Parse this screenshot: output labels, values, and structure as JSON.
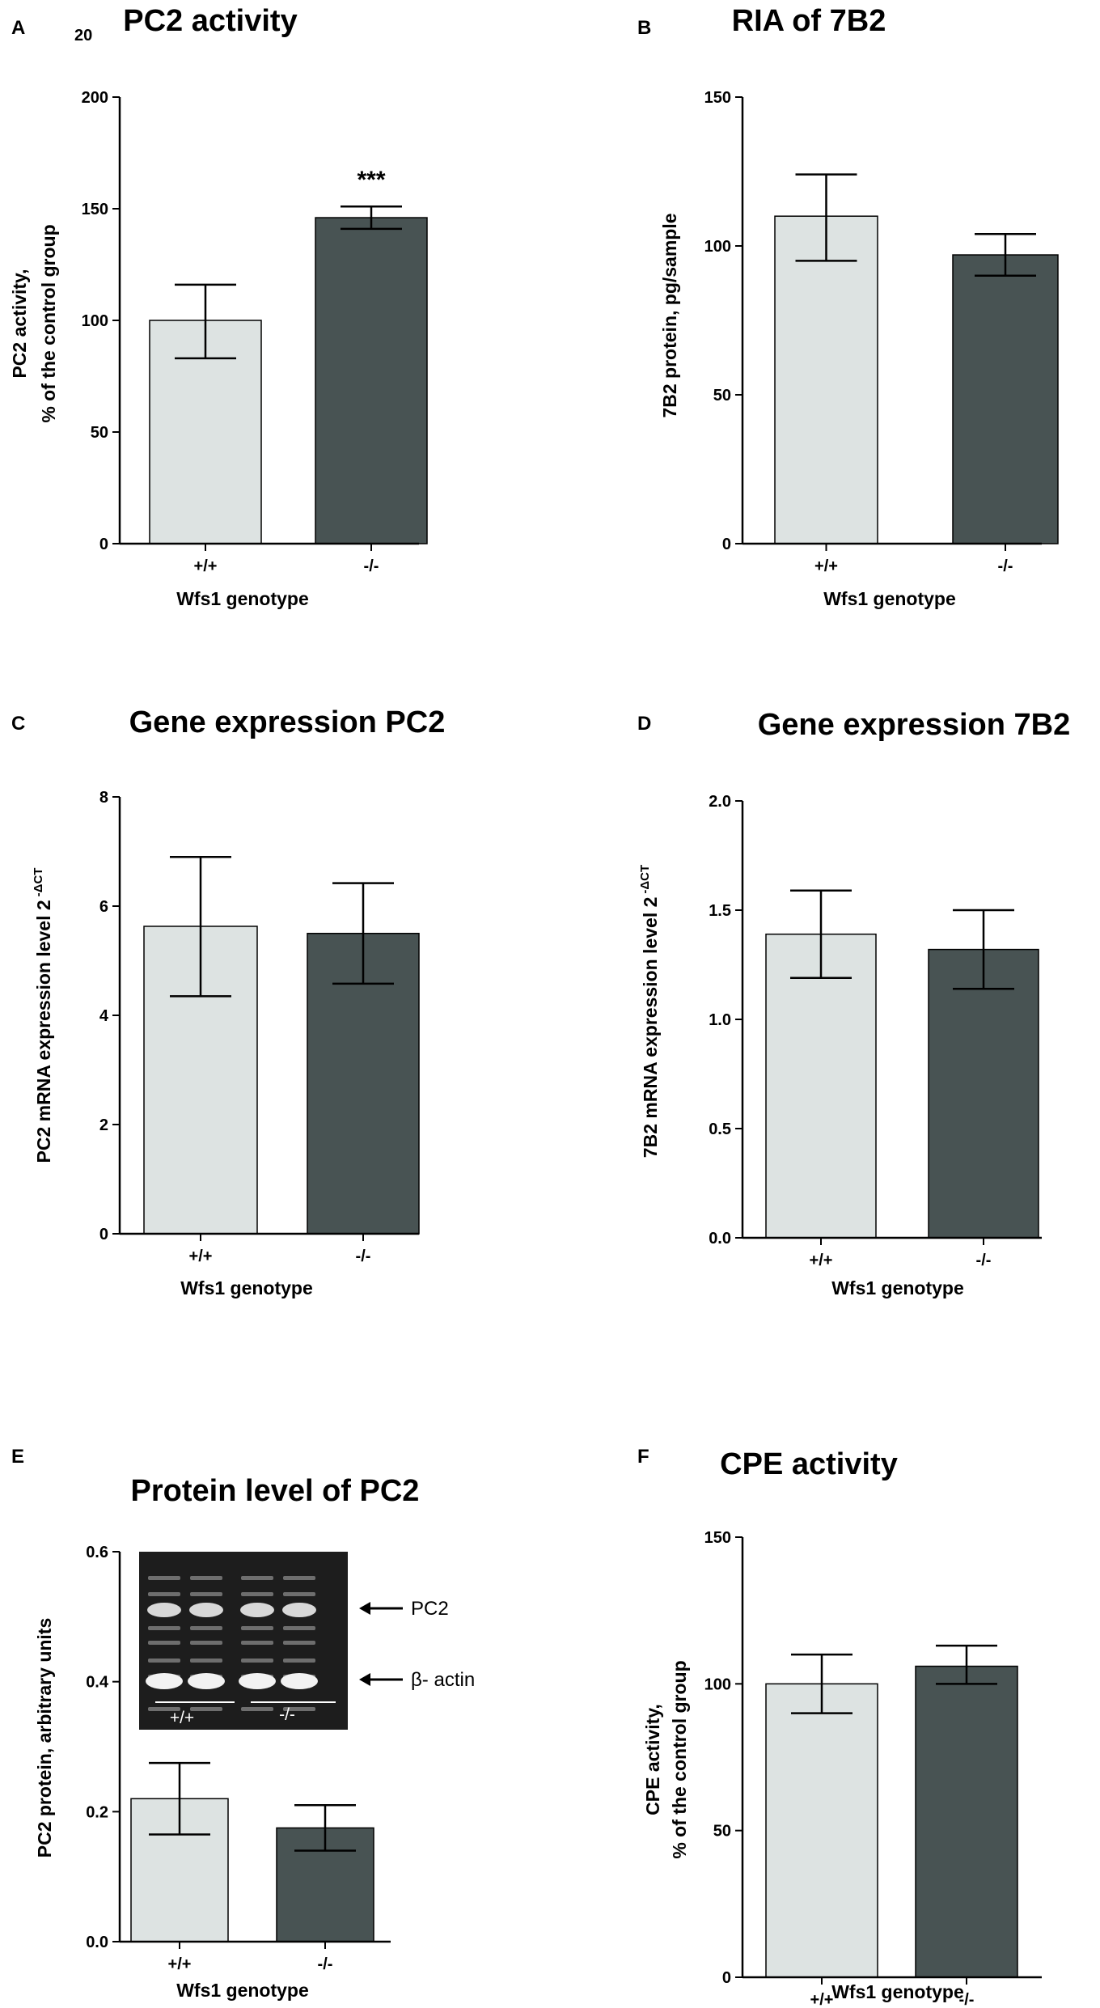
{
  "figure": {
    "stray_label": "20"
  },
  "colors": {
    "wild_type_bar": "#dde3e2",
    "knockout_bar": "#485353",
    "axis": "#000000"
  },
  "chart_data": [
    {
      "id": "A",
      "panel_letter": "A",
      "type": "bar",
      "title": "PC2 activity",
      "xlabel": "Wfs1 genotype",
      "ylabel": [
        "PC2 activity,",
        "% of the control group"
      ],
      "categories": [
        "+/+",
        "-/-"
      ],
      "values": [
        100,
        146
      ],
      "errors": [
        [
          83,
          116
        ],
        [
          141,
          151
        ]
      ],
      "ylim": [
        0,
        200
      ],
      "yticks": [
        0,
        50,
        100,
        150,
        200
      ],
      "ytick_labels": [
        "0",
        "50",
        "100",
        "150",
        "200"
      ],
      "annotations": [
        {
          "category": "-/-",
          "text": "***",
          "y": 166
        }
      ]
    },
    {
      "id": "B",
      "panel_letter": "B",
      "type": "bar",
      "title": "RIA of 7B2",
      "xlabel": "Wfs1 genotype",
      "ylabel": [
        "7B2 protein, pg/sample"
      ],
      "categories": [
        "+/+",
        "-/-"
      ],
      "values": [
        110,
        97
      ],
      "errors": [
        [
          95,
          124
        ],
        [
          90,
          104
        ]
      ],
      "ylim": [
        0,
        150
      ],
      "yticks": [
        0,
        50,
        100,
        150
      ],
      "ytick_labels": [
        "0",
        "50",
        "100",
        "150"
      ],
      "annotations": []
    },
    {
      "id": "C",
      "panel_letter": "C",
      "type": "bar",
      "title": "Gene expression PC2",
      "xlabel": "Wfs1 genotype",
      "ylabel": [
        "PC2 mRNA expression level 2"
      ],
      "ylabel_sup": "-ΔCT",
      "categories": [
        "+/+",
        "-/-"
      ],
      "values": [
        5.63,
        5.5
      ],
      "errors": [
        [
          4.35,
          6.9
        ],
        [
          4.58,
          6.42
        ]
      ],
      "ylim": [
        0,
        8
      ],
      "yticks": [
        0,
        2,
        4,
        6,
        8
      ],
      "ytick_labels": [
        "0",
        "2",
        "4",
        "6",
        "8"
      ],
      "annotations": []
    },
    {
      "id": "D",
      "panel_letter": "D",
      "type": "bar",
      "title": "Gene expression 7B2",
      "xlabel": "Wfs1 genotype",
      "ylabel": [
        "7B2 mRNA expression level 2"
      ],
      "ylabel_sup": "-ΔCT",
      "categories": [
        "+/+",
        "-/-"
      ],
      "values": [
        1.39,
        1.32
      ],
      "errors": [
        [
          1.19,
          1.59
        ],
        [
          1.14,
          1.5
        ]
      ],
      "ylim": [
        0,
        2.0
      ],
      "yticks": [
        0,
        0.5,
        1.0,
        1.5,
        2.0
      ],
      "ytick_labels": [
        "0.0",
        "0.5",
        "1.0",
        "1.5",
        "2.0"
      ],
      "annotations": []
    },
    {
      "id": "E",
      "panel_letter": "E",
      "type": "bar",
      "title": "Protein level of PC2",
      "xlabel": "Wfs1 genotype",
      "ylabel": [
        "PC2 protein, arbitrary units"
      ],
      "categories": [
        "+/+",
        "-/-"
      ],
      "values": [
        0.22,
        0.175
      ],
      "errors": [
        [
          0.165,
          0.275
        ],
        [
          0.14,
          0.21
        ]
      ],
      "ylim": [
        0,
        0.6
      ],
      "yticks": [
        0,
        0.2,
        0.4,
        0.6
      ],
      "ytick_labels": [
        "0.0",
        "0.2",
        "0.4",
        "0.6"
      ],
      "annotations": [],
      "inset": {
        "band_labels": [
          "PC2",
          "β- actin"
        ],
        "lane_labels": [
          "+/+",
          "-/-"
        ]
      }
    },
    {
      "id": "F",
      "panel_letter": "F",
      "type": "bar",
      "title": "CPE activity",
      "xlabel": "Wfs1 genotype",
      "ylabel": [
        "CPE activity,",
        "% of the control group"
      ],
      "categories": [
        "+/+",
        "-/-"
      ],
      "values": [
        100,
        106
      ],
      "errors": [
        [
          90,
          110
        ],
        [
          100,
          113
        ]
      ],
      "ylim": [
        0,
        150
      ],
      "yticks": [
        0,
        50,
        100,
        150
      ],
      "ytick_labels": [
        "0",
        "50",
        "100",
        "150"
      ],
      "annotations": []
    }
  ]
}
